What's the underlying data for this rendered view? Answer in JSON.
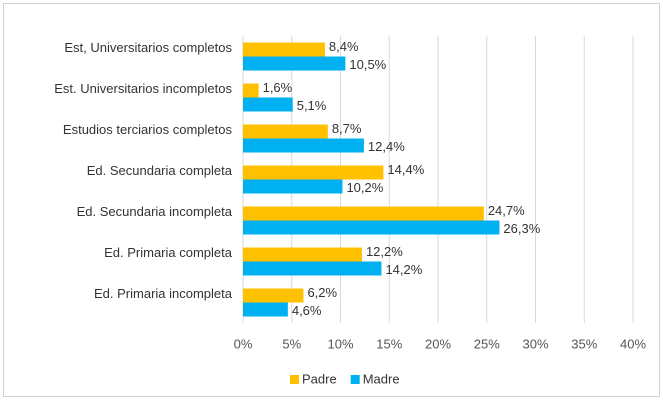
{
  "chart_data": {
    "type": "hbar",
    "categories": [
      "Est, Universitarios completos",
      "Est. Universitarios incompletos",
      "Estudios terciarios completos",
      "Ed. Secundaria completa",
      "Ed. Secundaria incompleta",
      "Ed. Primaria completa",
      "Ed. Primaria incompleta"
    ],
    "series": [
      {
        "name": "Padre",
        "color": "#ffc000",
        "values": [
          8.4,
          1.6,
          8.7,
          14.4,
          24.7,
          12.2,
          6.2
        ],
        "value_labels": [
          "8,4%",
          "1,6%",
          "8,7%",
          "14,4%",
          "24,7%",
          "12,2%",
          "6,2%"
        ]
      },
      {
        "name": "Madre",
        "color": "#00b0f0",
        "values": [
          10.5,
          5.1,
          12.4,
          10.2,
          26.3,
          14.2,
          4.6
        ],
        "value_labels": [
          "10,5%",
          "5,1%",
          "12,4%",
          "10,2%",
          "26,3%",
          "14,2%",
          "4,6%"
        ]
      }
    ],
    "xlim": [
      0,
      40
    ],
    "xticks": [
      {
        "value": 0,
        "label": "0%"
      },
      {
        "value": 5,
        "label": "5%"
      },
      {
        "value": 10,
        "label": "10%"
      },
      {
        "value": 15,
        "label": "15%"
      },
      {
        "value": 20,
        "label": "20%"
      },
      {
        "value": 25,
        "label": "25%"
      },
      {
        "value": 30,
        "label": "30%"
      },
      {
        "value": 35,
        "label": "35%"
      },
      {
        "value": 40,
        "label": "40%"
      }
    ],
    "grid": true,
    "legend": "bottom"
  }
}
